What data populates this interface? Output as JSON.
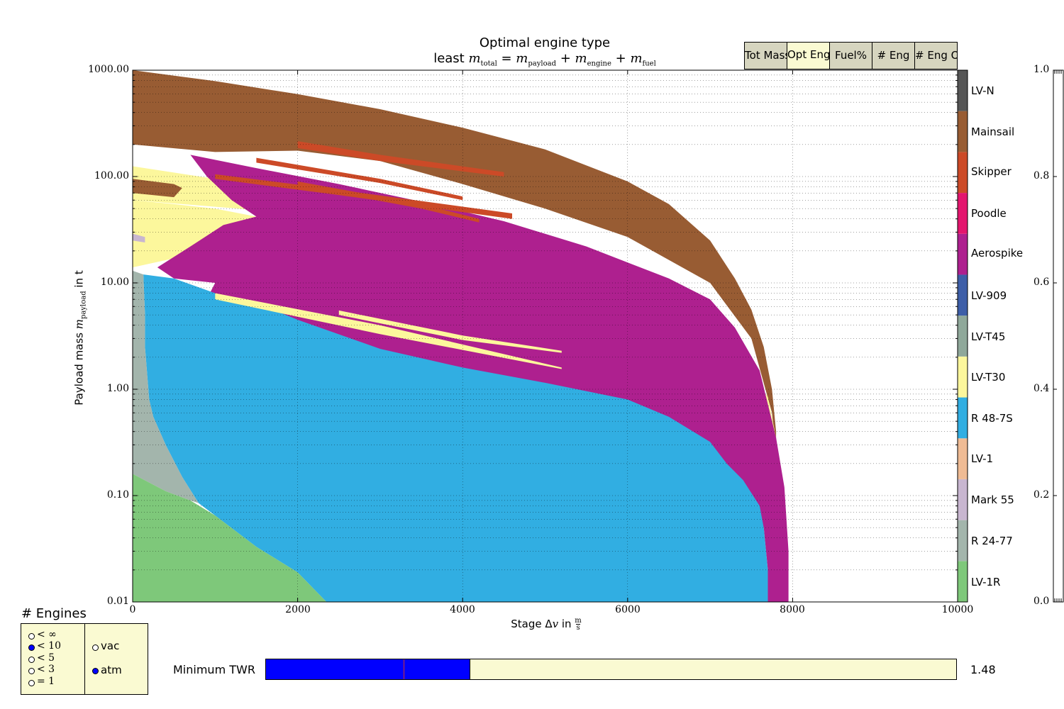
{
  "title": "Optimal engine type",
  "subtitle": "least m_total = m_payload + m_engine + m_fuel",
  "tabs": [
    {
      "label": "Tot Mass",
      "active": false
    },
    {
      "label": "Opt Eng",
      "active": true
    },
    {
      "label": "Fuel%",
      "active": false
    },
    {
      "label": "# Eng",
      "active": false
    },
    {
      "label": "# Eng O",
      "active": false
    }
  ],
  "chart_data": {
    "type": "heatmap",
    "title": "Optimal engine type",
    "subtitle": "least m_total = m_payload + m_engine + m_fuel",
    "xlabel": "Stage Δv in m/s",
    "ylabel": "Payload mass m_payload in t",
    "xlim": [
      0,
      10000
    ],
    "ylim": [
      0.01,
      1000
    ],
    "yscale": "log",
    "grid": true,
    "x_ticks": [
      "0",
      "2000",
      "4000",
      "6000",
      "8000",
      "10000"
    ],
    "y_ticks": [
      "0.01",
      "0.10",
      "1.00",
      "10.00",
      "100.00",
      "1000.00"
    ],
    "colorbar": {
      "placement": "right",
      "categories": [
        {
          "name": "LV-1R",
          "color": "#7ec87a"
        },
        {
          "name": "R 24-77",
          "color": "#a3b5ac"
        },
        {
          "name": "Mark 55",
          "color": "#c8b6d0"
        },
        {
          "name": "LV-1",
          "color": "#efbb94"
        },
        {
          "name": "R 48-7S",
          "color": "#31aee2"
        },
        {
          "name": "LV-T30",
          "color": "#fcf79c"
        },
        {
          "name": "LV-T45",
          "color": "#8fa89a"
        },
        {
          "name": "LV-909",
          "color": "#3d5ea8"
        },
        {
          "name": "Aerospike",
          "color": "#ae208f"
        },
        {
          "name": "Poodle",
          "color": "#e3166e"
        },
        {
          "name": "Skipper",
          "color": "#cc4a27"
        },
        {
          "name": "Mainsail",
          "color": "#985c33"
        },
        {
          "name": "LV-N",
          "color": "#555555"
        }
      ]
    },
    "regions": [
      {
        "engine": "Mainsail",
        "polygon": [
          [
            0,
            1000
          ],
          [
            1000,
            790
          ],
          [
            2000,
            595
          ],
          [
            3000,
            430
          ],
          [
            4000,
            288
          ],
          [
            5000,
            180
          ],
          [
            6000,
            90
          ],
          [
            6500,
            55
          ],
          [
            7000,
            25
          ],
          [
            7300,
            11
          ],
          [
            7500,
            5.6
          ],
          [
            7650,
            2.5
          ],
          [
            7750,
            1.0
          ],
          [
            7800,
            0.4
          ],
          [
            7800,
            0.25
          ],
          [
            7750,
            0.6
          ],
          [
            7500,
            3
          ],
          [
            7000,
            10
          ],
          [
            6000,
            27
          ],
          [
            5000,
            50
          ],
          [
            4000,
            85
          ],
          [
            3000,
            140
          ],
          [
            2000,
            175
          ],
          [
            1000,
            170
          ],
          [
            0,
            200
          ]
        ]
      },
      {
        "engine": "LV-T30",
        "polygon": [
          [
            0,
            125
          ],
          [
            1000,
            95
          ],
          [
            2000,
            60
          ],
          [
            3000,
            38
          ],
          [
            4000,
            25
          ],
          [
            5000,
            17
          ],
          [
            6000,
            11
          ],
          [
            6000,
            10
          ],
          [
            5000,
            13
          ],
          [
            4000,
            20
          ],
          [
            3000,
            31
          ],
          [
            2000,
            45
          ],
          [
            1000,
            52
          ],
          [
            0,
            60
          ]
        ]
      },
      {
        "engine": "Mainsail",
        "polygon": [
          [
            0,
            95
          ],
          [
            500,
            85
          ],
          [
            600,
            78
          ],
          [
            500,
            64
          ],
          [
            0,
            70
          ]
        ]
      },
      {
        "engine": "LV-T30",
        "polygon": [
          [
            0,
            60
          ],
          [
            500,
            55
          ],
          [
            1000,
            50
          ],
          [
            1500,
            42
          ],
          [
            1700,
            36
          ],
          [
            2000,
            25
          ],
          [
            2500,
            23
          ],
          [
            3000,
            19
          ],
          [
            4000,
            12.5
          ],
          [
            5000,
            7.5
          ],
          [
            6000,
            4.6
          ],
          [
            7000,
            2.6
          ],
          [
            7300,
            2.0
          ],
          [
            7700,
            0.85
          ],
          [
            7800,
            0.35
          ],
          [
            7800,
            0.25
          ],
          [
            7700,
            0.6
          ],
          [
            7000,
            1.6
          ],
          [
            6000,
            2.3
          ],
          [
            5000,
            3.5
          ],
          [
            4000,
            5.8
          ],
          [
            3000,
            9.8
          ],
          [
            2000,
            14
          ],
          [
            1000,
            18
          ],
          [
            500,
            17
          ],
          [
            0,
            14
          ]
        ]
      },
      {
        "engine": "Aerospike",
        "polygon": [
          [
            700,
            160
          ],
          [
            1500,
            120
          ],
          [
            2500,
            85
          ],
          [
            3500,
            58
          ],
          [
            4500,
            38
          ],
          [
            5500,
            22
          ],
          [
            6500,
            11
          ],
          [
            7000,
            7
          ],
          [
            7300,
            3.8
          ],
          [
            7600,
            1.5
          ],
          [
            7800,
            0.35
          ],
          [
            7900,
            0.12
          ],
          [
            7950,
            0.03
          ],
          [
            7950,
            0.01
          ],
          [
            7700,
            0.01
          ],
          [
            7700,
            0.02
          ],
          [
            7650,
            0.05
          ],
          [
            7450,
            0.1
          ],
          [
            7000,
            0.14
          ],
          [
            6000,
            0.28
          ],
          [
            5000,
            0.45
          ],
          [
            4000,
            0.65
          ],
          [
            3000,
            1.0
          ],
          [
            2000,
            1.7
          ],
          [
            1500,
            2.4
          ],
          [
            1000,
            3.5
          ],
          [
            500,
            3.5
          ],
          [
            800,
            5
          ],
          [
            1000,
            10
          ],
          [
            500,
            11
          ],
          [
            300,
            14
          ],
          [
            700,
            22
          ],
          [
            1100,
            35
          ],
          [
            1500,
            42
          ],
          [
            1200,
            60
          ],
          [
            900,
            100
          ]
        ]
      },
      {
        "engine": "R 48-7S",
        "polygon": [
          [
            130,
            12
          ],
          [
            500,
            11
          ],
          [
            1000,
            8
          ],
          [
            1500,
            6.5
          ],
          [
            2000,
            4.5
          ],
          [
            3000,
            2.4
          ],
          [
            4000,
            1.6
          ],
          [
            5000,
            1.15
          ],
          [
            6000,
            0.8
          ],
          [
            6500,
            0.55
          ],
          [
            7000,
            0.32
          ],
          [
            7200,
            0.2
          ],
          [
            7400,
            0.14
          ],
          [
            7600,
            0.08
          ],
          [
            7650,
            0.05
          ],
          [
            7700,
            0.02
          ],
          [
            7700,
            0.01
          ],
          [
            2350,
            0.01
          ],
          [
            2000,
            0.019
          ],
          [
            1500,
            0.033
          ],
          [
            1000,
            0.065
          ],
          [
            800,
            0.085
          ],
          [
            600,
            0.15
          ],
          [
            400,
            0.3
          ],
          [
            250,
            0.55
          ],
          [
            200,
            0.8
          ],
          [
            150,
            2.5
          ],
          [
            150,
            5
          ]
        ]
      },
      {
        "engine": "R 24-77",
        "polygon": [
          [
            0,
            13
          ],
          [
            130,
            12
          ],
          [
            150,
            5
          ],
          [
            150,
            2.5
          ],
          [
            200,
            0.8
          ],
          [
            250,
            0.55
          ],
          [
            400,
            0.3
          ],
          [
            600,
            0.15
          ],
          [
            800,
            0.085
          ],
          [
            700,
            0.09
          ],
          [
            400,
            0.11
          ],
          [
            0,
            0.16
          ]
        ]
      },
      {
        "engine": "Mark 55",
        "polygon": [
          [
            0,
            29
          ],
          [
            150,
            27
          ],
          [
            150,
            24
          ],
          [
            0,
            25
          ]
        ]
      },
      {
        "engine": "LV-1R",
        "polygon": [
          [
            0,
            0.16
          ],
          [
            400,
            0.11
          ],
          [
            700,
            0.09
          ],
          [
            1000,
            0.065
          ],
          [
            1500,
            0.033
          ],
          [
            2000,
            0.019
          ],
          [
            2350,
            0.01
          ],
          [
            0,
            0.01
          ]
        ]
      },
      {
        "engine": "Skipper",
        "polygon": [
          [
            2000,
            215
          ],
          [
            3000,
            160
          ],
          [
            4500,
            110
          ],
          [
            4500,
            100
          ],
          [
            3000,
            140
          ],
          [
            2000,
            185
          ]
        ]
      },
      {
        "engine": "Skipper",
        "polygon": [
          [
            1000,
            105
          ],
          [
            2500,
            75
          ],
          [
            4600,
            45
          ],
          [
            4600,
            40
          ],
          [
            2500,
            67
          ],
          [
            1000,
            95
          ]
        ]
      },
      {
        "engine": "Skipper",
        "polygon": [
          [
            1500,
            150
          ],
          [
            3000,
            95
          ],
          [
            4000,
            65
          ],
          [
            4000,
            60
          ],
          [
            3000,
            87
          ],
          [
            1500,
            135
          ]
        ]
      },
      {
        "engine": "Skipper",
        "polygon": [
          [
            2000,
            90
          ],
          [
            3500,
            55
          ],
          [
            4200,
            40
          ],
          [
            4200,
            37
          ],
          [
            3500,
            50
          ],
          [
            2000,
            82
          ]
        ]
      },
      {
        "engine": "LV-T30",
        "polygon": [
          [
            1000,
            8
          ],
          [
            3000,
            4
          ],
          [
            5200,
            1.6
          ],
          [
            5200,
            1.55
          ],
          [
            3000,
            3.3
          ],
          [
            1000,
            7
          ]
        ]
      },
      {
        "engine": "LV-T30",
        "polygon": [
          [
            2500,
            5.5
          ],
          [
            4000,
            3.2
          ],
          [
            5200,
            2.3
          ],
          [
            5200,
            2.2
          ],
          [
            4000,
            2.9
          ],
          [
            2500,
            5
          ]
        ]
      }
    ]
  },
  "right_axis_ticks": [
    "0.0",
    "0.2",
    "0.4",
    "0.6",
    "0.8",
    "1.0"
  ],
  "engines_panel": {
    "title": "# Engines",
    "options": [
      {
        "label": "< ∞",
        "selected": false
      },
      {
        "label": "< 10",
        "selected": true
      },
      {
        "label": "< 5",
        "selected": false
      },
      {
        "label": "< 3",
        "selected": false
      },
      {
        "label": "= 1",
        "selected": false
      }
    ],
    "env_options": [
      {
        "label": "vac",
        "selected": false
      },
      {
        "label": "atm",
        "selected": true
      }
    ]
  },
  "twr_slider": {
    "label": "Minimum TWR",
    "value_text": "1.48",
    "fill_fraction": 0.296,
    "marker_fraction": 0.199
  }
}
